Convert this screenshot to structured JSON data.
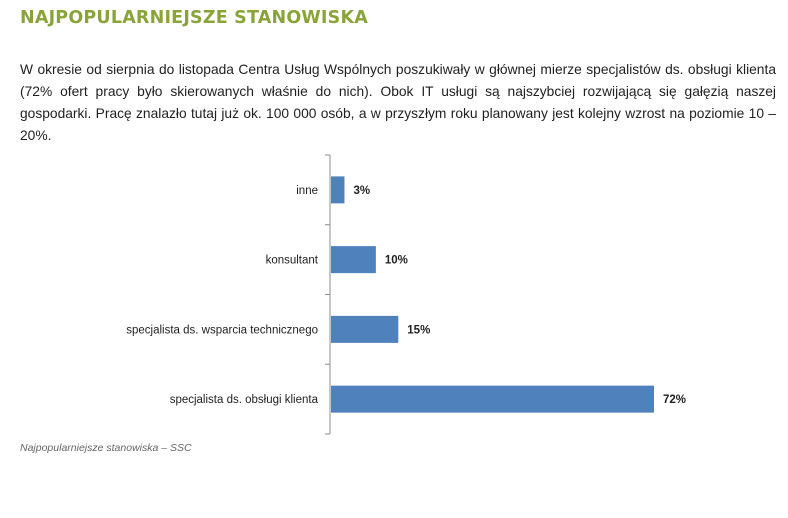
{
  "header": {
    "title": "NAJPOPULARNIEJSZE STANOWISKA"
  },
  "body": {
    "paragraph": "W okresie  od sierpnia do listopada Centra Usług Wspólnych poszukiwały w głównej mierze specjalistów ds. obsługi klienta (72% ofert pracy było skierowanych właśnie do nich). Obok IT usługi są najszybciej rozwijającą się gałęzią naszej gospodarki. Pracę znalazło tutaj już ok. 100 000 osób, a w przyszłym roku planowany jest kolejny wzrost na poziomie 10 – 20%."
  },
  "chart_data": {
    "type": "bar",
    "orientation": "horizontal",
    "categories": [
      "inne",
      "konsultant",
      "specjalista ds. wsparcia technicznego",
      "specjalista ds. obsługi klienta"
    ],
    "values": [
      3,
      10,
      15,
      72
    ],
    "data_labels": [
      "3%",
      "10%",
      "15%",
      "72%"
    ],
    "xlim": [
      0,
      72
    ],
    "bar_color": "#4f81bd",
    "grid": false,
    "legend": false
  },
  "caption": "Najpopularniejsze stanowiska – SSC"
}
